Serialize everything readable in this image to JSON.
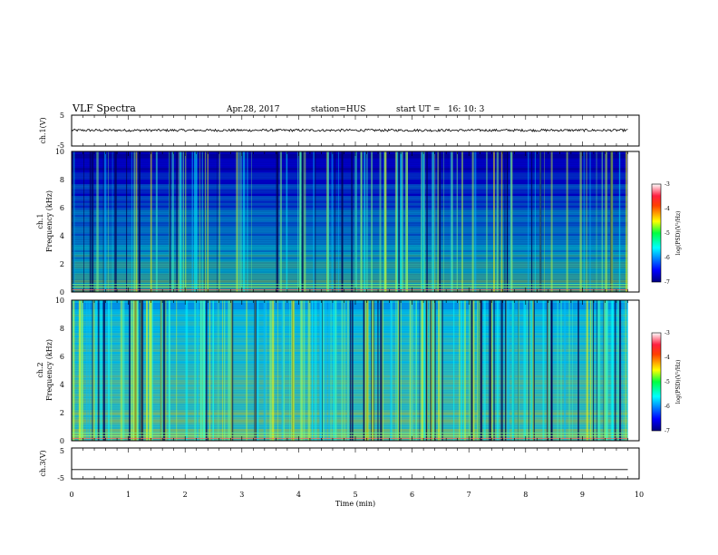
{
  "header": {
    "title": "VLF Spectra",
    "date": "Apr.28, 2017",
    "station": "station=HUS",
    "start": "start UT =   16: 10: 3"
  },
  "chart_data": [
    {
      "type": "line",
      "ylabel": "ch.1(V)",
      "xlim": [
        0,
        10
      ],
      "ylim": [
        -5,
        5
      ],
      "yticks": [
        "5",
        "-5"
      ],
      "series": [
        {
          "level": 0.1,
          "noise_amplitude": 0.4
        }
      ]
    },
    {
      "type": "heatmap",
      "ylabel_top": "ch.1",
      "ylabel": "Frequency (kHz)",
      "xlim": [
        0,
        10
      ],
      "data_xmax": 9.8,
      "ylim": [
        0,
        10
      ],
      "yticks": [
        "0",
        "2",
        "4",
        "6",
        "8",
        "10"
      ],
      "colorbar": {
        "label": "log(PSD)(V²/Hz)",
        "ticks": [
          "-3",
          "-4",
          "-5",
          "-6",
          "-7"
        ],
        "range": [
          -7,
          -3
        ]
      }
    },
    {
      "type": "heatmap",
      "ylabel_top": "ch.2",
      "ylabel": "Frequency (kHz)",
      "xlim": [
        0,
        10
      ],
      "data_xmax": 9.8,
      "ylim": [
        0,
        10
      ],
      "yticks": [
        "0",
        "2",
        "4",
        "6",
        "8",
        "10"
      ],
      "colorbar": {
        "label": "log(PSD)(V²/Hz)",
        "ticks": [
          "-3",
          "-4",
          "-5",
          "-6",
          "-7"
        ],
        "range": [
          -7,
          -3
        ]
      }
    },
    {
      "type": "line",
      "ylabel": "ch.3(V)",
      "xlim": [
        0,
        10
      ],
      "ylim": [
        -5,
        5
      ],
      "yticks": [
        "5",
        "-5"
      ],
      "series": [
        {
          "level": -2,
          "noise_amplitude": 0
        }
      ]
    }
  ],
  "x_axis": {
    "label": "Time (min)",
    "ticks": [
      "0",
      "1",
      "2",
      "3",
      "4",
      "5",
      "6",
      "7",
      "8",
      "9",
      "10"
    ]
  }
}
